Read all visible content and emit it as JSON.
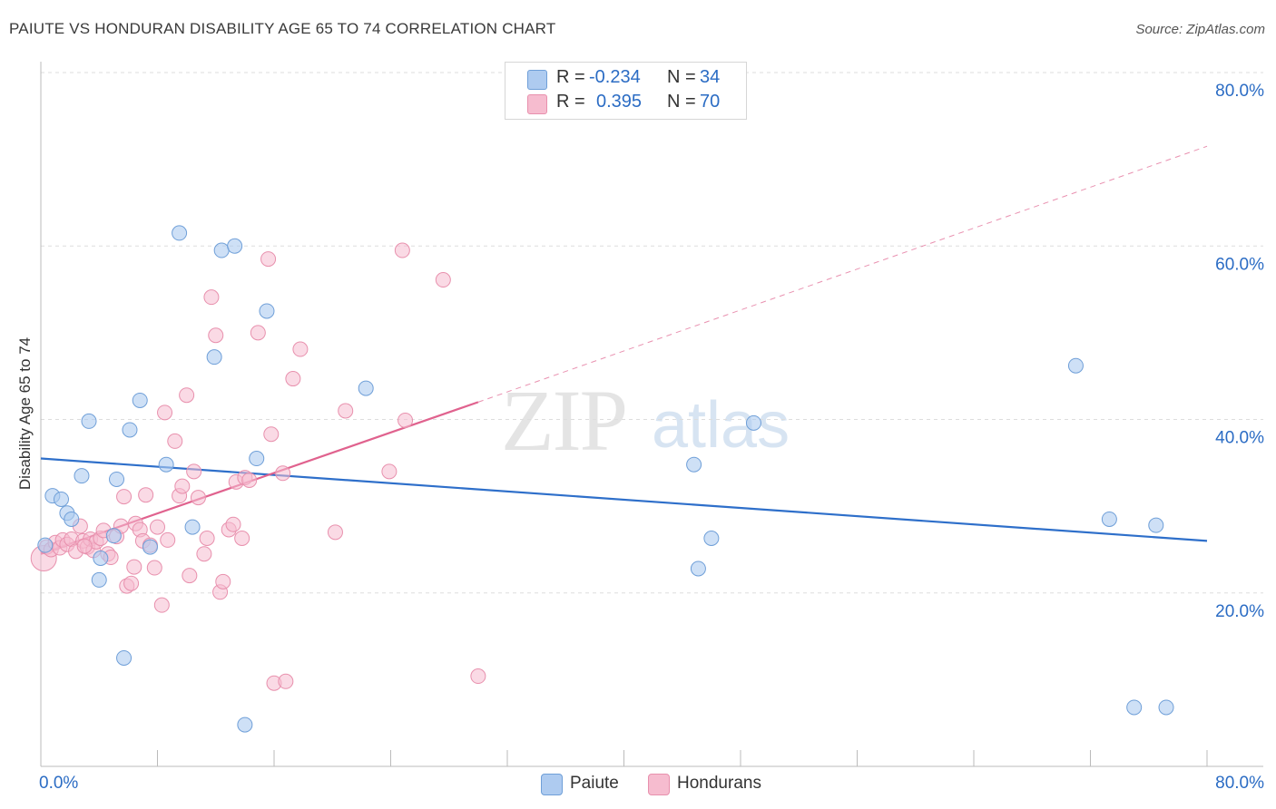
{
  "title": "PAIUTE VS HONDURAN DISABILITY AGE 65 TO 74 CORRELATION CHART",
  "source": "Source: ZipAtlas.com",
  "watermark": {
    "zip": "ZIP",
    "atlas": "atlas"
  },
  "legend": {
    "row1": {
      "r_label": "R =",
      "r_value": "-0.234",
      "n_label": "N =",
      "n_value": "34"
    },
    "row2": {
      "r_label": "R =",
      "r_value": "0.395",
      "n_label": "N =",
      "n_value": "70"
    }
  },
  "bottom_legend": {
    "paiute": "Paiute",
    "hondurans": "Hondurans"
  },
  "colors": {
    "paiute_fill": "#aecbf0",
    "paiute_stroke": "#6f9fd8",
    "paiute_line": "#2e6fca",
    "honduran_fill": "#f6bccf",
    "honduran_stroke": "#e890ad",
    "honduran_line": "#e0628e",
    "grid": "#dddddd",
    "tick_text": "#2b6cc4"
  },
  "chart_data": {
    "type": "scatter",
    "title": "PAIUTE VS HONDURAN DISABILITY AGE 65 TO 74 CORRELATION CHART",
    "xlabel": "",
    "ylabel": "Disability Age 65 to 74",
    "xlim": [
      0,
      80
    ],
    "ylim": [
      0,
      80
    ],
    "x_tick_labels": [
      "0.0%",
      "80.0%"
    ],
    "y_tick_labels": [
      "20.0%",
      "40.0%",
      "60.0%",
      "80.0%"
    ],
    "y_ticks": [
      20,
      40,
      60,
      80
    ],
    "series": [
      {
        "name": "Paiute",
        "r": -0.234,
        "n": 34,
        "trend": {
          "x": [
            0,
            80
          ],
          "y": [
            35.5,
            26.0
          ],
          "style": "solid"
        },
        "points": [
          [
            0.3,
            25.5
          ],
          [
            0.8,
            31.2
          ],
          [
            1.4,
            30.8
          ],
          [
            1.8,
            29.2
          ],
          [
            2.1,
            28.5
          ],
          [
            2.8,
            33.5
          ],
          [
            3.3,
            39.8
          ],
          [
            4.0,
            21.5
          ],
          [
            4.1,
            24.0
          ],
          [
            5.0,
            26.6
          ],
          [
            5.2,
            33.1
          ],
          [
            5.7,
            12.5
          ],
          [
            6.1,
            38.8
          ],
          [
            6.8,
            42.2
          ],
          [
            7.5,
            25.3
          ],
          [
            8.6,
            34.8
          ],
          [
            9.5,
            61.5
          ],
          [
            10.4,
            27.6
          ],
          [
            11.9,
            47.2
          ],
          [
            12.4,
            59.5
          ],
          [
            13.3,
            60.0
          ],
          [
            14.0,
            4.8
          ],
          [
            14.8,
            35.5
          ],
          [
            15.5,
            52.5
          ],
          [
            22.3,
            43.6
          ],
          [
            44.8,
            34.8
          ],
          [
            45.1,
            22.8
          ],
          [
            46.0,
            26.3
          ],
          [
            48.9,
            39.6
          ],
          [
            71.0,
            46.2
          ],
          [
            73.3,
            28.5
          ],
          [
            75.0,
            6.8
          ],
          [
            76.5,
            27.8
          ],
          [
            77.2,
            6.8
          ]
        ]
      },
      {
        "name": "Hondurans",
        "r": 0.395,
        "n": 70,
        "trend": {
          "x": [
            0,
            30
          ],
          "y": [
            24.5,
            42.0
          ],
          "style": "solid"
        },
        "trend_extension": {
          "x": [
            30,
            80
          ],
          "y": [
            42.0,
            71.5
          ],
          "style": "dashed"
        },
        "points": [
          [
            0.2,
            24.0
          ],
          [
            0.4,
            25.3
          ],
          [
            0.7,
            25.0
          ],
          [
            1.0,
            25.8
          ],
          [
            1.3,
            25.2
          ],
          [
            1.5,
            26.1
          ],
          [
            1.8,
            25.6
          ],
          [
            2.1,
            26.2
          ],
          [
            2.4,
            24.8
          ],
          [
            2.7,
            27.7
          ],
          [
            2.9,
            26.0
          ],
          [
            3.2,
            25.3
          ],
          [
            3.4,
            26.2
          ],
          [
            3.6,
            24.9
          ],
          [
            3.8,
            25.9
          ],
          [
            4.1,
            26.3
          ],
          [
            4.3,
            27.2
          ],
          [
            4.6,
            24.5
          ],
          [
            4.8,
            24.1
          ],
          [
            5.2,
            26.5
          ],
          [
            5.5,
            27.7
          ],
          [
            5.7,
            31.1
          ],
          [
            5.9,
            20.8
          ],
          [
            6.2,
            21.1
          ],
          [
            6.5,
            28.0
          ],
          [
            6.8,
            27.3
          ],
          [
            7.0,
            26.0
          ],
          [
            7.2,
            31.3
          ],
          [
            7.5,
            25.5
          ],
          [
            7.8,
            22.9
          ],
          [
            8.0,
            27.6
          ],
          [
            8.3,
            18.6
          ],
          [
            8.5,
            40.8
          ],
          [
            8.7,
            26.1
          ],
          [
            9.2,
            37.5
          ],
          [
            9.5,
            31.2
          ],
          [
            9.7,
            32.3
          ],
          [
            10.0,
            42.8
          ],
          [
            10.2,
            22.0
          ],
          [
            10.5,
            34.0
          ],
          [
            10.8,
            31.0
          ],
          [
            11.2,
            24.5
          ],
          [
            11.4,
            26.3
          ],
          [
            11.7,
            54.1
          ],
          [
            12.0,
            49.7
          ],
          [
            12.3,
            20.1
          ],
          [
            12.5,
            21.3
          ],
          [
            12.9,
            27.3
          ],
          [
            13.2,
            27.9
          ],
          [
            13.4,
            32.8
          ],
          [
            13.8,
            26.3
          ],
          [
            14.0,
            33.3
          ],
          [
            14.3,
            33.0
          ],
          [
            14.9,
            50.0
          ],
          [
            15.6,
            58.5
          ],
          [
            15.8,
            38.3
          ],
          [
            16.0,
            9.6
          ],
          [
            16.6,
            33.8
          ],
          [
            16.8,
            9.8
          ],
          [
            17.3,
            44.7
          ],
          [
            17.8,
            48.1
          ],
          [
            20.2,
            27.0
          ],
          [
            20.9,
            41.0
          ],
          [
            23.9,
            34.0
          ],
          [
            24.8,
            59.5
          ],
          [
            25.0,
            39.9
          ],
          [
            27.6,
            56.1
          ],
          [
            30.0,
            10.4
          ],
          [
            6.4,
            23.0
          ],
          [
            3.0,
            25.4
          ]
        ]
      }
    ]
  }
}
